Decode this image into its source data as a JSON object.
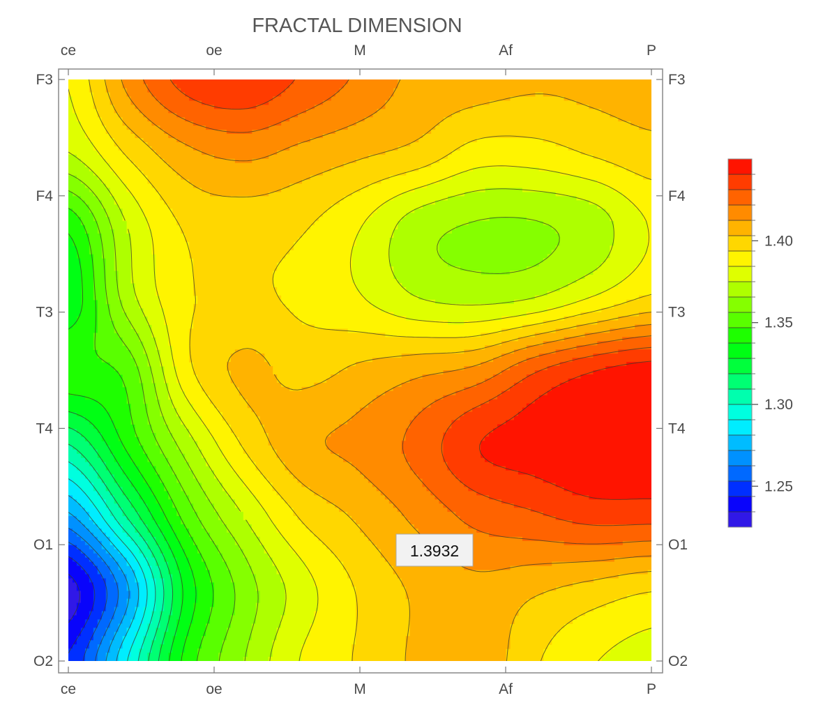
{
  "chart_data": {
    "type": "contour",
    "title": "FRACTAL DIMENSION",
    "x_ticks": [
      "ce",
      "oe",
      "M",
      "Af",
      "P"
    ],
    "y_ticks": [
      "F3",
      "F4",
      "T3",
      "T4",
      "O1",
      "O2"
    ],
    "value_range": [
      1.225,
      1.45
    ],
    "colorbar": {
      "placement": "right",
      "tick_values": [
        1.25,
        1.3,
        1.35,
        1.4
      ],
      "tick_labels": [
        "1.25",
        "1.30",
        "1.35",
        "1.40"
      ],
      "levels": 24,
      "colors": [
        "#4422dd",
        "#0000ff",
        "#0066ff",
        "#00aaff",
        "#00ffff",
        "#00ffaa",
        "#00ff44",
        "#00ff00",
        "#66ff00",
        "#aaff00",
        "#ffff00",
        "#ffcc00",
        "#ff8800",
        "#ff4400",
        "#ff0000"
      ]
    },
    "grid_values": [
      [
        1.385,
        1.415,
        1.435,
        1.44,
        1.43,
        1.42,
        1.41,
        1.408,
        1.405,
        1.406,
        1.408
      ],
      [
        1.375,
        1.395,
        1.41,
        1.415,
        1.41,
        1.405,
        1.4,
        1.39,
        1.39,
        1.395,
        1.4
      ],
      [
        1.34,
        1.375,
        1.395,
        1.398,
        1.395,
        1.385,
        1.37,
        1.365,
        1.365,
        1.37,
        1.385
      ],
      [
        1.33,
        1.37,
        1.392,
        1.395,
        1.392,
        1.385,
        1.375,
        1.372,
        1.375,
        1.385,
        1.395
      ],
      [
        1.345,
        1.35,
        1.39,
        1.405,
        1.4,
        1.405,
        1.41,
        1.415,
        1.43,
        1.44,
        1.445
      ],
      [
        1.31,
        1.34,
        1.37,
        1.395,
        1.41,
        1.415,
        1.425,
        1.44,
        1.445,
        1.45,
        1.45
      ],
      [
        1.27,
        1.31,
        1.35,
        1.375,
        1.395,
        1.405,
        1.415,
        1.425,
        1.43,
        1.435,
        1.435
      ],
      [
        1.23,
        1.27,
        1.33,
        1.36,
        1.38,
        1.395,
        1.405,
        1.41,
        1.405,
        1.4,
        1.395
      ],
      [
        1.245,
        1.29,
        1.34,
        1.365,
        1.385,
        1.395,
        1.405,
        1.41,
        1.395,
        1.385,
        1.38
      ]
    ],
    "tooltip": {
      "label": "1.3932"
    }
  }
}
